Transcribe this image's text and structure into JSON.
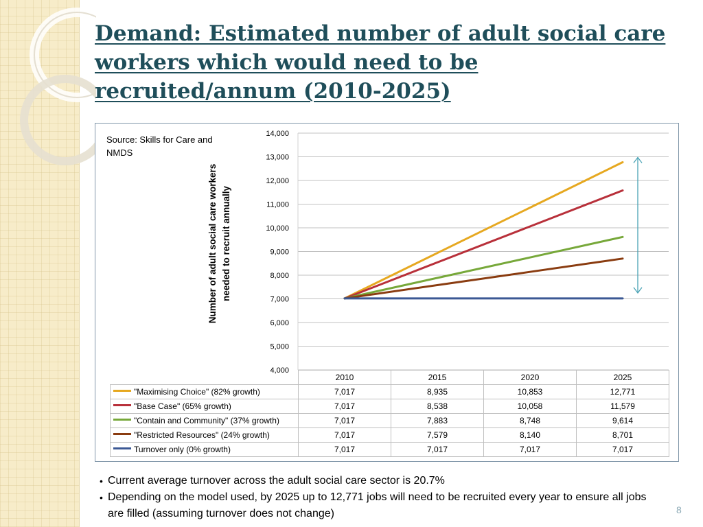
{
  "slide": {
    "title": "Demand: Estimated number of adult social care workers which would need to be recruited/annum (2010-2025)",
    "source_note": "Source: Skills for Care and NMDS",
    "bullets": [
      "Current average turnover across the adult social care sector is 20.7%",
      "Depending on the model used, by 2025 up to 12,771 jobs will need to be recruited every year to ensure all jobs are filled (assuming turnover does not change)"
    ],
    "page_number": "8"
  },
  "colors": {
    "title": "#1f4e5a",
    "side_strip": "#f7ecc9",
    "grid": "#c0c0c0",
    "arrow": "#4aa3b5"
  },
  "chart_data": {
    "type": "line",
    "title": "",
    "xlabel": "",
    "ylabel": "Number of adult social care workers needed to recruit annually",
    "categories": [
      "2010",
      "2015",
      "2020",
      "2025"
    ],
    "ylim": [
      4000,
      14000
    ],
    "yticks": [
      4000,
      5000,
      6000,
      7000,
      8000,
      9000,
      10000,
      11000,
      12000,
      13000,
      14000
    ],
    "ytick_labels": [
      "4,000",
      "5,000",
      "6,000",
      "7,000",
      "8,000",
      "9,000",
      "10,000",
      "11,000",
      "12,000",
      "13,000",
      "14,000"
    ],
    "grid": true,
    "legend": "data-table below chart",
    "series": [
      {
        "name": "\"Maximising Choice\" (82% growth)",
        "color": "#e6a820",
        "values": [
          7017,
          8935,
          10853,
          12771
        ],
        "labels": [
          "7,017",
          "8,935",
          "10,853",
          "12,771"
        ]
      },
      {
        "name": "\"Base Case\" (65% growth)",
        "color": "#b8303a",
        "values": [
          7017,
          8538,
          10058,
          11579
        ],
        "labels": [
          "7,017",
          "8,538",
          "10,058",
          "11,579"
        ]
      },
      {
        "name": "\"Contain and Community\" (37% growth)",
        "color": "#77a83a",
        "values": [
          7017,
          7883,
          8748,
          9614
        ],
        "labels": [
          "7,017",
          "7,883",
          "8,748",
          "9,614"
        ]
      },
      {
        "name": "\"Restricted Resources\" (24% growth)",
        "color": "#8a3c10",
        "values": [
          7017,
          7579,
          8140,
          8701
        ],
        "labels": [
          "7,017",
          "7,579",
          "8,140",
          "8,701"
        ]
      },
      {
        "name": "Turnover only (0% growth)",
        "color": "#3b5894",
        "values": [
          7017,
          7017,
          7017,
          7017
        ],
        "labels": [
          "7,017",
          "7,017",
          "7,017",
          "7,017"
        ]
      }
    ],
    "annotations": [
      {
        "type": "double-arrow",
        "from_value": 7017,
        "to_value": 12771,
        "x_position": "right of 2025"
      }
    ]
  }
}
